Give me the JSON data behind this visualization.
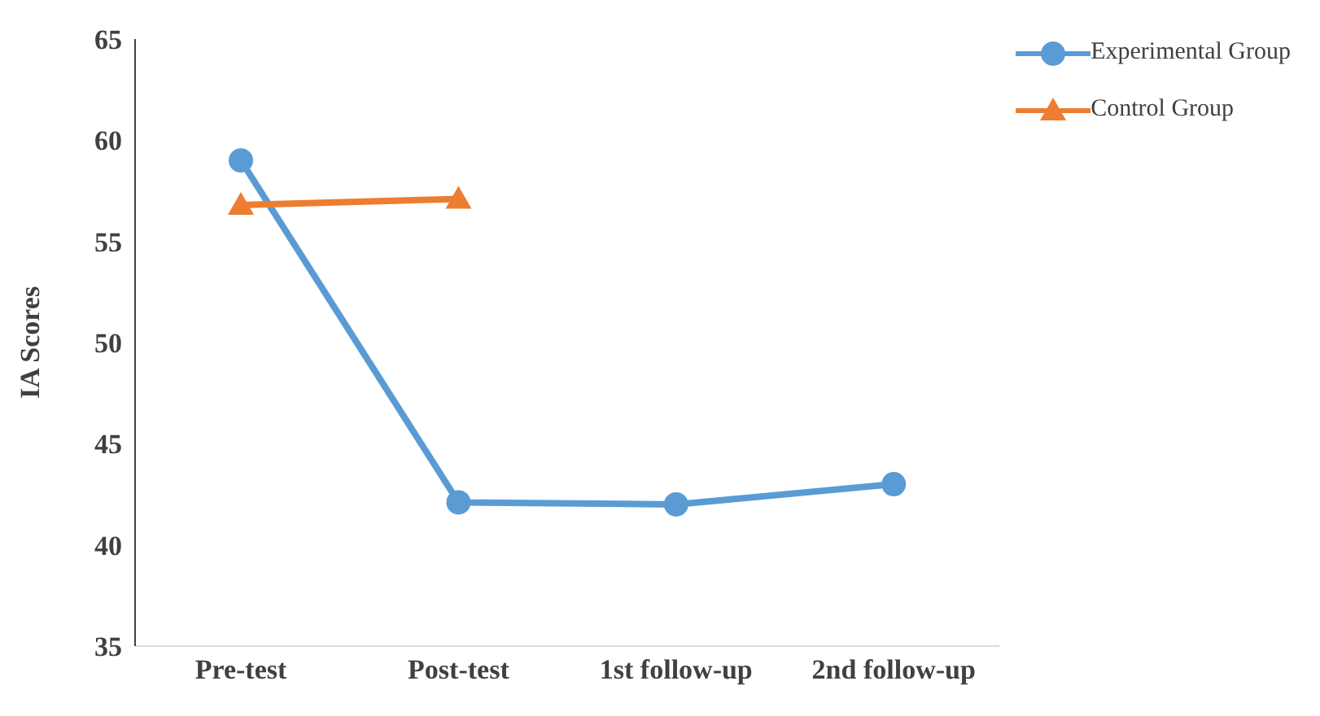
{
  "chart_data": {
    "type": "line",
    "ylabel": "IA Scores",
    "categories": [
      "Pre-test",
      "Post-test",
      "1st follow-up",
      "2nd follow-up"
    ],
    "series": [
      {
        "name": "Experimental Group",
        "color": "#5b9bd5",
        "marker": "circle",
        "values": [
          59.0,
          42.1,
          42.0,
          43.0
        ]
      },
      {
        "name": "Control Group",
        "color": "#ed7d31",
        "marker": "triangle",
        "values": [
          56.8,
          57.1,
          null,
          null
        ]
      }
    ],
    "ylim": [
      35,
      65
    ],
    "yticks": [
      35,
      40,
      45,
      50,
      55,
      60,
      65
    ],
    "grid": false,
    "legend": "top right",
    "line_style": "solid"
  }
}
